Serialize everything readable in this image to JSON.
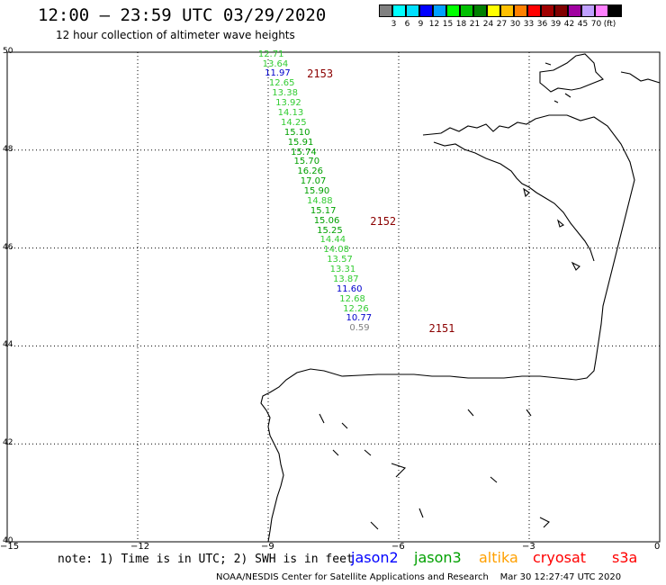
{
  "header": {
    "title": "12:00 – 23:59 UTC 03/29/2020",
    "subtitle": "12 hour collection of altimeter wave heights"
  },
  "legend": {
    "colors": [
      "#808080",
      "#00ffff",
      "#00e0ff",
      "#0000ff",
      "#00a0ff",
      "#00ff00",
      "#00c000",
      "#008000",
      "#ffff00",
      "#ffc000",
      "#ff8000",
      "#ff0000",
      "#a00000",
      "#800000",
      "#a000a0",
      "#c0a0ff",
      "#ff80ff",
      "#000000"
    ],
    "labels": [
      "3",
      "6",
      "9",
      "12",
      "15",
      "18",
      "21",
      "24",
      "27",
      "30",
      "33",
      "36",
      "39",
      "42",
      "45",
      "70",
      "(ft)"
    ]
  },
  "axes": {
    "y_labels": [
      "50",
      "48",
      "46",
      "44",
      "42",
      "40"
    ],
    "x_labels": [
      "−15",
      "−12",
      "−9",
      "−6",
      "−3",
      "0"
    ]
  },
  "map": {
    "lon_range": [
      -15,
      0
    ],
    "lat_range": [
      40,
      50
    ],
    "land_outline_color": "#000000",
    "grid_style": "dotted"
  },
  "wave_heights": [
    {
      "value": "12.71",
      "lon": -8.9,
      "lat": 49.95,
      "color": "#33cc33"
    },
    {
      "value": "13.64",
      "lon": -8.8,
      "lat": 49.75,
      "color": "#33cc33"
    },
    {
      "value": "11.97",
      "lon": -8.75,
      "lat": 49.55,
      "color": "#0000cc"
    },
    {
      "value": "12.65",
      "lon": -8.65,
      "lat": 49.35,
      "color": "#33cc33"
    },
    {
      "value": "13.38",
      "lon": -8.58,
      "lat": 49.15,
      "color": "#33cc33"
    },
    {
      "value": "13.92",
      "lon": -8.5,
      "lat": 48.95,
      "color": "#33cc33"
    },
    {
      "value": "14.13",
      "lon": -8.45,
      "lat": 48.75,
      "color": "#33cc33"
    },
    {
      "value": "14.25",
      "lon": -8.38,
      "lat": 48.55,
      "color": "#33cc33"
    },
    {
      "value": "15.10",
      "lon": -8.3,
      "lat": 48.35,
      "color": "#00a000"
    },
    {
      "value": "15.91",
      "lon": -8.22,
      "lat": 48.15,
      "color": "#00a000"
    },
    {
      "value": "15.74",
      "lon": -8.15,
      "lat": 47.95,
      "color": "#00a000"
    },
    {
      "value": "15.70",
      "lon": -8.08,
      "lat": 47.75,
      "color": "#00a000"
    },
    {
      "value": "16.26",
      "lon": -8.0,
      "lat": 47.55,
      "color": "#00a000"
    },
    {
      "value": "17.07",
      "lon": -7.93,
      "lat": 47.35,
      "color": "#00a000"
    },
    {
      "value": "15.90",
      "lon": -7.85,
      "lat": 47.15,
      "color": "#00a000"
    },
    {
      "value": "14.88",
      "lon": -7.78,
      "lat": 46.95,
      "color": "#33cc33"
    },
    {
      "value": "15.17",
      "lon": -7.7,
      "lat": 46.75,
      "color": "#00a000"
    },
    {
      "value": "15.06",
      "lon": -7.62,
      "lat": 46.55,
      "color": "#00a000"
    },
    {
      "value": "15.25",
      "lon": -7.55,
      "lat": 46.35,
      "color": "#00a000"
    },
    {
      "value": "14.44",
      "lon": -7.48,
      "lat": 46.15,
      "color": "#33cc33"
    },
    {
      "value": "14.08",
      "lon": -7.4,
      "lat": 45.95,
      "color": "#33cc33"
    },
    {
      "value": "13.57",
      "lon": -7.32,
      "lat": 45.75,
      "color": "#33cc33"
    },
    {
      "value": "13.31",
      "lon": -7.25,
      "lat": 45.55,
      "color": "#33cc33"
    },
    {
      "value": "13.87",
      "lon": -7.18,
      "lat": 45.35,
      "color": "#33cc33"
    },
    {
      "value": "11.60",
      "lon": -7.1,
      "lat": 45.15,
      "color": "#0000cc"
    },
    {
      "value": "12.68",
      "lon": -7.03,
      "lat": 44.95,
      "color": "#33cc33"
    },
    {
      "value": "12.26",
      "lon": -6.95,
      "lat": 44.75,
      "color": "#33cc33"
    },
    {
      "value": "10.77",
      "lon": -6.88,
      "lat": 44.55,
      "color": "#0000cc"
    },
    {
      "value": "0.59",
      "lon": -6.8,
      "lat": 44.35,
      "color": "#808080"
    }
  ],
  "pass_labels": [
    {
      "value": "2153",
      "lon": -7.9,
      "lat": 49.55
    },
    {
      "value": "2152",
      "lon": -6.45,
      "lat": 46.55
    },
    {
      "value": "2151",
      "lon": -5.1,
      "lat": 44.35
    }
  ],
  "footer": {
    "note": "note: 1) Time is in UTC; 2) SWH is in feet",
    "satellites": [
      {
        "name": "jason2",
        "color": "#0000ff"
      },
      {
        "name": "jason3",
        "color": "#00a000"
      },
      {
        "name": "altika",
        "color": "#ffa000"
      },
      {
        "name": "cryosat",
        "color": "#ff0000"
      },
      {
        "name": "s3a",
        "color": "#ff0000"
      }
    ],
    "credit": "NOAA/NESDIS Center for Satellite Applications and Research",
    "timestamp": "Mar 30 12:27:47 UTC 2020"
  }
}
